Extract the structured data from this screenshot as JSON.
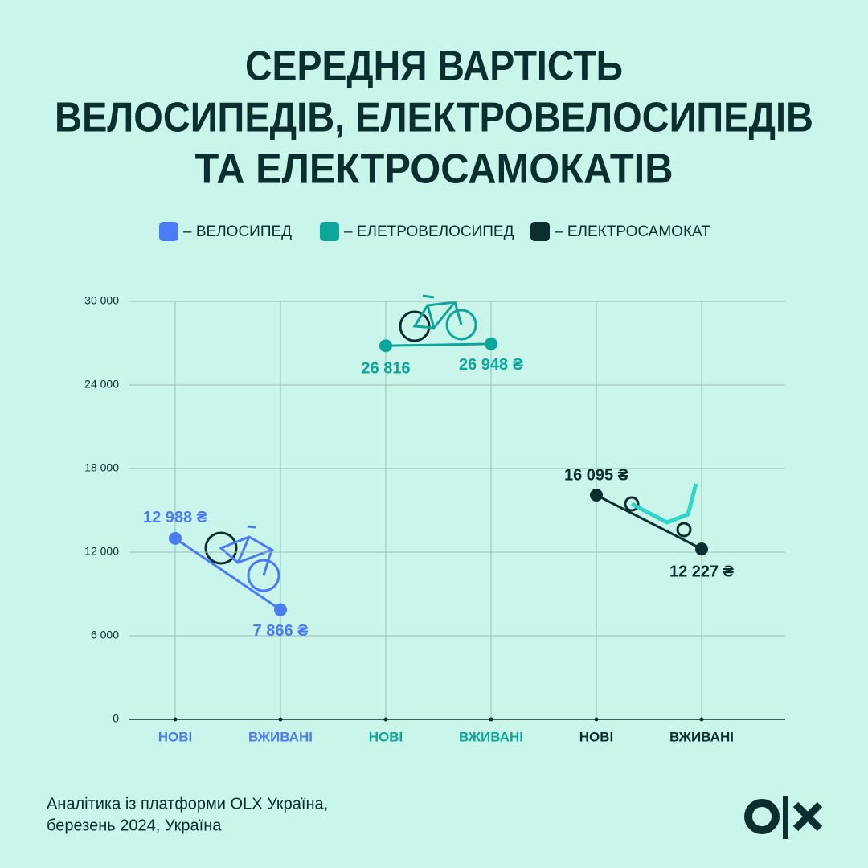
{
  "chart_data": {
    "type": "line",
    "title": [
      "СЕРЕДНЯ ВАРТІСТЬ",
      "ВЕЛОСИПЕДІВ, ЕЛЕКТРОВЕЛОСИПЕДІВ",
      "ТА ЕЛЕКТРОСАМОКАТІВ"
    ],
    "categories": [
      "НОВІ",
      "ВЖИВАНІ",
      "НОВІ",
      "ВЖИВАНІ",
      "НОВІ",
      "ВЖИВАНІ"
    ],
    "series": [
      {
        "name": "– ВЕЛОСИПЕД",
        "color": "#4a7cf5",
        "values": [
          12988,
          7866,
          null,
          null,
          null,
          null
        ],
        "value_labels": [
          "12 988 ₴",
          "7 866 ₴",
          null,
          null,
          null,
          null
        ]
      },
      {
        "name": "– ЕЛЕТРОВЕЛОСИПЕД",
        "color": "#0ea59a",
        "values": [
          null,
          null,
          26816,
          26948,
          null,
          null
        ],
        "value_labels": [
          null,
          null,
          "26 816",
          "26 948 ₴",
          null,
          null
        ]
      },
      {
        "name": "– ЕЛЕКТРОСАМОКАТ",
        "color": "#0b2e2e",
        "values": [
          null,
          null,
          null,
          null,
          16095,
          12227
        ],
        "value_labels": [
          null,
          null,
          null,
          null,
          "16 095 ₴",
          "12 227 ₴"
        ]
      }
    ],
    "ylim": [
      0,
      30000
    ],
    "yticks": [
      0,
      {
        "value": 6000,
        "label": "6 000"
      },
      {
        "value": 12000,
        "label": "12 000"
      },
      {
        "value": 18000,
        "label": "18 000"
      },
      {
        "value": 24000,
        "label": "24 000"
      },
      {
        "value": 30000,
        "label": "30 000"
      }
    ],
    "grid": true,
    "legend": "top",
    "source": [
      "Аналітика із платформи OLX Україна,",
      "березень 2024, Україна"
    ]
  }
}
